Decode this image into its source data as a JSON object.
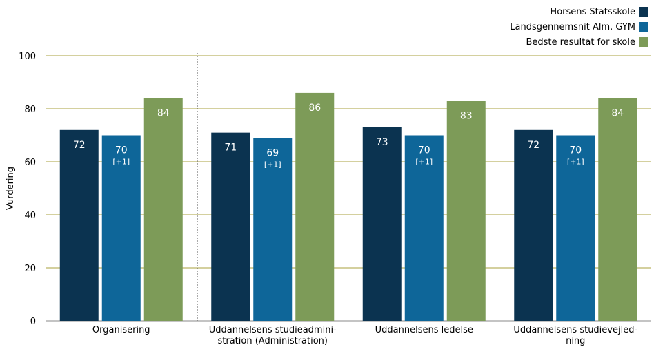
{
  "chart_data": {
    "type": "bar",
    "ylabel": "Vurdering",
    "xlabel": "",
    "ylim": [
      0,
      100
    ],
    "yticks": [
      0,
      20,
      40,
      60,
      80,
      100
    ],
    "grid": true,
    "legend_position": "top-right",
    "categories": [
      [
        "Organisering"
      ],
      [
        "Uddannelsens studieadmini-",
        "stration (Administration)"
      ],
      [
        "Uddannelsens ledelse"
      ],
      [
        "Uddannelsens studievejled-",
        "ning"
      ]
    ],
    "series": [
      {
        "name": "Horsens Statsskole",
        "color": "#0b3350",
        "values": [
          72,
          71,
          73,
          72
        ],
        "labels": [
          "72",
          "71",
          "73",
          "72"
        ]
      },
      {
        "name": "Landsgennemsnit Alm. GYM",
        "color": "#0e6699",
        "values": [
          70,
          69,
          70,
          70
        ],
        "labels": [
          "70",
          "69",
          "70",
          "70"
        ],
        "sublabels": [
          "[+1]",
          "[+1]",
          "[+1]",
          "[+1]"
        ]
      },
      {
        "name": "Bedste resultat for skole",
        "color": "#7d9b58",
        "values": [
          84,
          86,
          83,
          84
        ],
        "labels": [
          "84",
          "86",
          "83",
          "84"
        ]
      }
    ],
    "separator_after_category": 0
  }
}
